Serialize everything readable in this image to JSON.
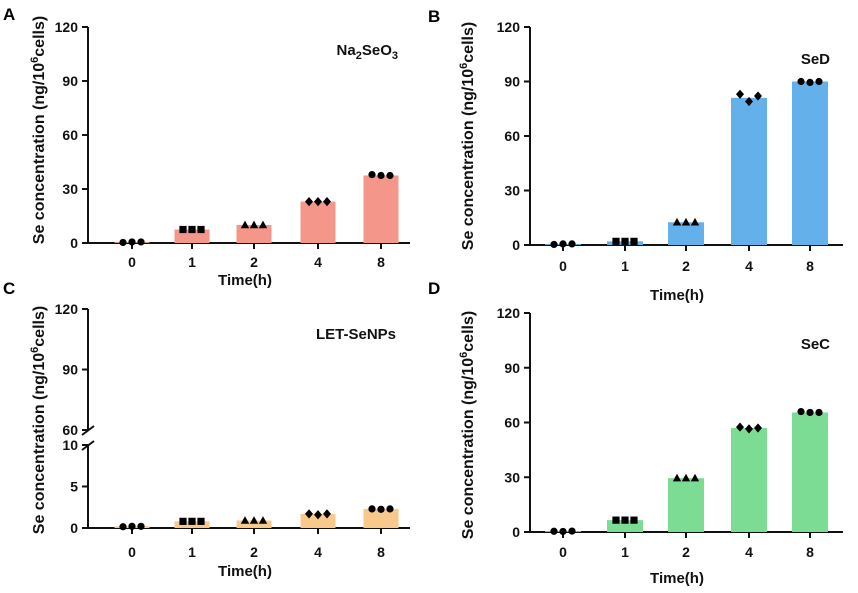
{
  "figure": {
    "colors": {
      "axis": "#111111",
      "marker": "#000000",
      "A": "#f4968a",
      "B": "#63b0ea",
      "C": "#f7c98a",
      "D": "#7ddc94"
    },
    "panels": [
      {
        "letter": "A",
        "title_main": "Na",
        "title_sub1": "2",
        "title_mid": "SeO",
        "title_sub2": "3",
        "ylabel_main": "Se concentration (ng/10",
        "ylabel_sup": "6",
        "ylabel_end": "cells)",
        "xlabel": "Time(h)"
      },
      {
        "letter": "B",
        "title_main": "SeD",
        "ylabel_main": "Se concentration (ng/10",
        "ylabel_sup": "6",
        "ylabel_end": "cells)",
        "xlabel": "Time(h)"
      },
      {
        "letter": "C",
        "title_main": "LET-SeNPs",
        "ylabel_main": "Se concentration (ng/10",
        "ylabel_sup": "6",
        "ylabel_end": "cells)",
        "xlabel": "Time(h)"
      },
      {
        "letter": "D",
        "title_main": "SeC",
        "ylabel_main": "Se concentration (ng/10",
        "ylabel_sup": "6",
        "ylabel_end": "cells)",
        "xlabel": "Time(h)"
      }
    ]
  },
  "chart_data": [
    {
      "panel": "A",
      "type": "bar",
      "title": "Na2SeO3",
      "categories": [
        "0",
        "1",
        "2",
        "4",
        "8"
      ],
      "values": [
        0.5,
        7.5,
        10.0,
        23.0,
        37.5
      ],
      "replicates": [
        [
          0.3,
          0.6,
          0.6
        ],
        [
          7.5,
          7.5,
          7.5
        ],
        [
          10,
          10,
          10
        ],
        [
          23,
          23,
          23
        ],
        [
          38,
          37.5,
          37.5
        ]
      ],
      "markers": [
        "circle",
        "square",
        "triangle",
        "diamond",
        "circle"
      ],
      "xlabel": "Time(h)",
      "ylabel": "Se concentration (ng/10^6cells)",
      "ylim": [
        0,
        120
      ],
      "yticks": [
        "0",
        "30",
        "60",
        "90",
        "120"
      ],
      "color": "#f4968a"
    },
    {
      "panel": "B",
      "type": "bar",
      "title": "SeD",
      "categories": [
        "0",
        "1",
        "2",
        "4",
        "8"
      ],
      "values": [
        0.5,
        2.0,
        12.5,
        81.0,
        90.0
      ],
      "replicates": [
        [
          0.3,
          0.6,
          0.6
        ],
        [
          2,
          2,
          2
        ],
        [
          12.5,
          12.5,
          12.5
        ],
        [
          83,
          79,
          82
        ],
        [
          90,
          89.5,
          90
        ]
      ],
      "markers": [
        "circle",
        "square",
        "triangle",
        "diamond",
        "circle"
      ],
      "xlabel": "Time(h)",
      "ylabel": "Se concentration (ng/10^6cells)",
      "ylim": [
        0,
        120
      ],
      "yticks": [
        "0",
        "30",
        "60",
        "90",
        "120"
      ],
      "color": "#63b0ea"
    },
    {
      "panel": "C",
      "type": "bar",
      "title": "LET-SeNPs",
      "broken_axis": true,
      "categories": [
        "0",
        "1",
        "2",
        "4",
        "8"
      ],
      "values": [
        0.2,
        0.8,
        0.9,
        1.7,
        2.3
      ],
      "replicates": [
        [
          0.15,
          0.2,
          0.2
        ],
        [
          0.8,
          0.8,
          0.8
        ],
        [
          0.9,
          0.9,
          0.9
        ],
        [
          1.7,
          1.6,
          1.7
        ],
        [
          2.3,
          2.25,
          2.3
        ]
      ],
      "markers": [
        "circle",
        "square",
        "triangle",
        "diamond",
        "circle"
      ],
      "xlabel": "Time(h)",
      "ylabel": "Se concentration (ng/10^6cells)",
      "ylim_lower": [
        0,
        10
      ],
      "ylim_upper": [
        60,
        120
      ],
      "yticks_lower": [
        "0",
        "5",
        "10"
      ],
      "yticks_upper": [
        "60",
        "90",
        "120"
      ],
      "color": "#f7c98a"
    },
    {
      "panel": "D",
      "type": "bar",
      "title": "SeC",
      "categories": [
        "0",
        "1",
        "2",
        "4",
        "8"
      ],
      "values": [
        0.5,
        6.5,
        29.5,
        57.0,
        65.5
      ],
      "replicates": [
        [
          0.4,
          0.3,
          0.5
        ],
        [
          6.5,
          6.5,
          6.5
        ],
        [
          29.5,
          29.5,
          29.5
        ],
        [
          57.5,
          56.5,
          57
        ],
        [
          66,
          65.5,
          65.5
        ]
      ],
      "markers": [
        "circle",
        "square",
        "triangle",
        "diamond",
        "circle"
      ],
      "xlabel": "Time(h)",
      "ylabel": "Se concentration (ng/10^6cells)",
      "ylim": [
        0,
        120
      ],
      "yticks": [
        "0",
        "30",
        "60",
        "90",
        "120"
      ],
      "color": "#7ddc94"
    }
  ]
}
